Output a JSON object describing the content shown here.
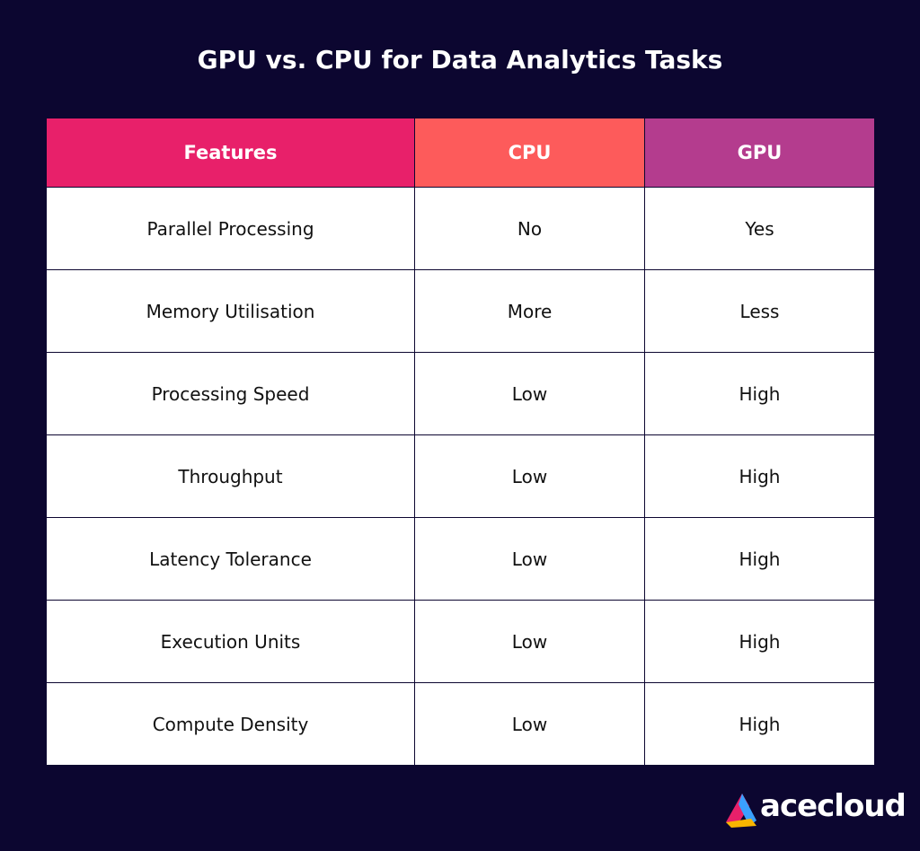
{
  "header": {
    "title": "GPU vs. CPU for Data Analytics Tasks"
  },
  "table": {
    "columns": [
      "Features",
      "CPU",
      "GPU"
    ],
    "rows": [
      [
        "Parallel Processing",
        "No",
        "Yes"
      ],
      [
        "Memory Utilisation",
        "More",
        "Less"
      ],
      [
        "Processing Speed",
        "Low",
        "High"
      ],
      [
        "Throughput",
        "Low",
        "High"
      ],
      [
        "Latency Tolerance",
        "Low",
        "High"
      ],
      [
        "Execution Units",
        "Low",
        "High"
      ],
      [
        "Compute Density",
        "Low",
        "High"
      ]
    ]
  },
  "logo": {
    "text": "acecloud"
  }
}
